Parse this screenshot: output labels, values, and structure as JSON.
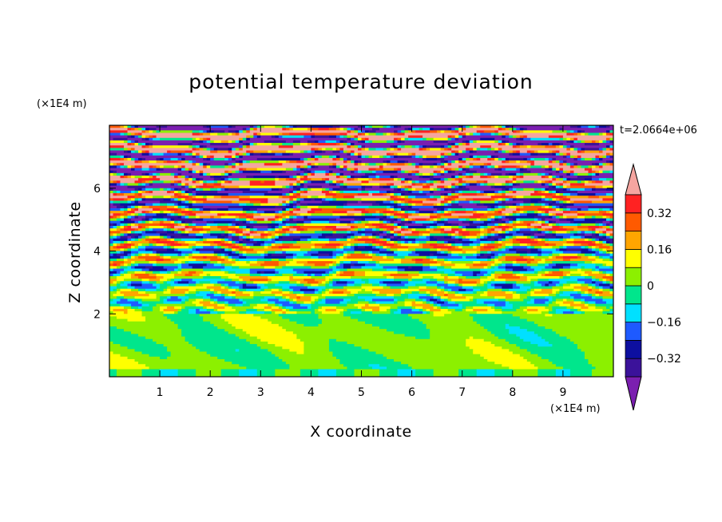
{
  "chart_data": {
    "type": "heatmap",
    "title": "potential temperature deviation",
    "xlabel": "X coordinate",
    "ylabel": "Z coordinate",
    "x_unit": "(×1E4 m)",
    "y_unit": "(×1E4 m)",
    "time_label": "t=2.0664e+06",
    "xlim": [
      0,
      10
    ],
    "ylim": [
      0,
      8
    ],
    "x_ticks": [
      1,
      2,
      3,
      4,
      5,
      6,
      7,
      8,
      9
    ],
    "y_ticks": [
      2,
      4,
      6
    ],
    "colorbar": {
      "levels": [
        -0.4,
        -0.32,
        -0.24,
        -0.16,
        -0.08,
        0,
        0.08,
        0.16,
        0.24,
        0.32,
        0.4
      ],
      "labels": [
        "0.32",
        "0.16",
        "0",
        "−0.16",
        "−0.32"
      ],
      "label_values": [
        0.32,
        0.16,
        0,
        -0.16,
        -0.32
      ],
      "colors": [
        "#7b1fb0",
        "#3b129a",
        "#0d0fa0",
        "#1e5aff",
        "#00e0ff",
        "#00e68c",
        "#8cf000",
        "#ffff00",
        "#ffa500",
        "#ff5a00",
        "#ff2222",
        "#f5a5a0"
      ],
      "extend": "both"
    },
    "field_description_rows": [
      {
        "z": 0.5,
        "value": 0.0
      },
      {
        "z": 1.5,
        "value": 0.05
      },
      {
        "z": 2.5,
        "value": 0.1
      },
      {
        "z": 3.0,
        "value": -0.15
      },
      {
        "z": 3.5,
        "value": 0.15
      },
      {
        "z": 4.0,
        "value": -0.1
      },
      {
        "z": 4.5,
        "value": -0.35
      },
      {
        "z": 5.0,
        "value": 0.3
      },
      {
        "z": 5.5,
        "value": -0.4
      },
      {
        "z": 6.0,
        "value": 0.45
      },
      {
        "z": 6.5,
        "value": -0.45
      },
      {
        "z": 7.0,
        "value": 0.45
      },
      {
        "z": 7.5,
        "value": -0.45
      }
    ]
  }
}
